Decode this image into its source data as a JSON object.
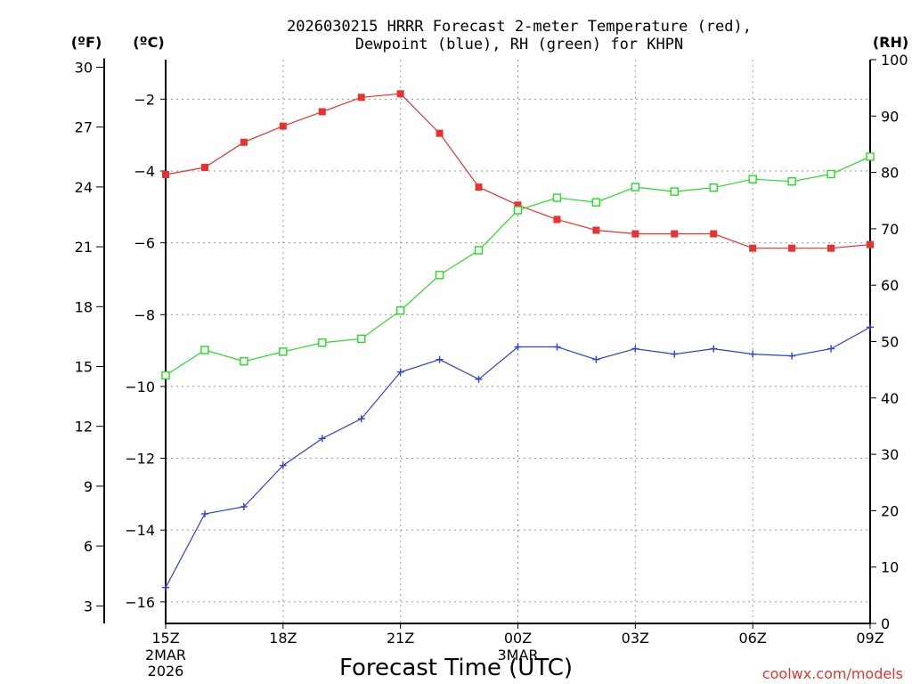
{
  "chart_data": {
    "type": "line",
    "title_line1": "2026030215 HRRR Forecast 2-meter Temperature (red),",
    "title_line2": "Dewpoint (blue), RH (green) for KHPN",
    "xlabel": "Forecast Time (UTC)",
    "unit_labels": {
      "fahrenheit": "(ºF)",
      "celsius": "(ºC)",
      "rh": "(RH)"
    },
    "credit": "coolwx.com/models",
    "x_hours": [
      15,
      16,
      17,
      18,
      19,
      20,
      21,
      22,
      23,
      24,
      25,
      26,
      27,
      28,
      29,
      30,
      31,
      32,
      33
    ],
    "x_ticks": [
      {
        "hour": 15,
        "label": "15Z",
        "sub1": "2MAR",
        "sub2": "2026"
      },
      {
        "hour": 18,
        "label": "18Z",
        "sub1": "",
        "sub2": ""
      },
      {
        "hour": 21,
        "label": "21Z",
        "sub1": "",
        "sub2": ""
      },
      {
        "hour": 24,
        "label": "00Z",
        "sub1": "3MAR",
        "sub2": ""
      },
      {
        "hour": 27,
        "label": "03Z",
        "sub1": "",
        "sub2": ""
      },
      {
        "hour": 30,
        "label": "06Z",
        "sub1": "",
        "sub2": ""
      },
      {
        "hour": 33,
        "label": "09Z",
        "sub1": "",
        "sub2": ""
      }
    ],
    "celsius_range": [
      -16.6,
      -0.9
    ],
    "celsius_ticks": [
      "-2",
      "-4",
      "-6",
      "-8",
      "-10",
      "-12",
      "-14",
      "-16"
    ],
    "fahrenheit_ticks": [
      "30",
      "27",
      "24",
      "21",
      "18",
      "15",
      "12",
      "9",
      "6",
      "3"
    ],
    "rh_range": [
      0,
      100
    ],
    "rh_ticks": [
      "100",
      "90",
      "80",
      "70",
      "60",
      "50",
      "40",
      "30",
      "20",
      "10",
      "0"
    ],
    "series": [
      {
        "name": "Temperature",
        "color": "#e8322e",
        "marker": "filled-square",
        "values": [
          -4.1,
          -3.9,
          -3.2,
          -2.75,
          -2.35,
          -1.95,
          -1.85,
          -2.95,
          -4.45,
          -4.95,
          -5.35,
          -5.65,
          -5.75,
          -5.75,
          -5.75,
          -6.15,
          -6.15,
          -6.15,
          -6.05
        ]
      },
      {
        "name": "Dewpoint",
        "color": "#2f3fd8",
        "marker": "plus",
        "values": [
          -15.6,
          -13.55,
          -13.35,
          -12.2,
          -11.45,
          -10.9,
          -9.6,
          -9.25,
          -9.8,
          -8.9,
          -8.9,
          -9.25,
          -8.95,
          -9.1,
          -8.95,
          -9.1,
          -9.15,
          -8.95,
          -8.35
        ]
      },
      {
        "name": "RH",
        "color": "#22dd22",
        "marker": "open-square",
        "values": [
          44,
          48.5,
          46.5,
          48.2,
          49.8,
          50.5,
          55.5,
          61.8,
          66.2,
          73.3,
          75.5,
          74.7,
          77.4,
          76.6,
          77.3,
          78.8,
          78.4,
          79.7,
          82.8
        ]
      }
    ]
  }
}
